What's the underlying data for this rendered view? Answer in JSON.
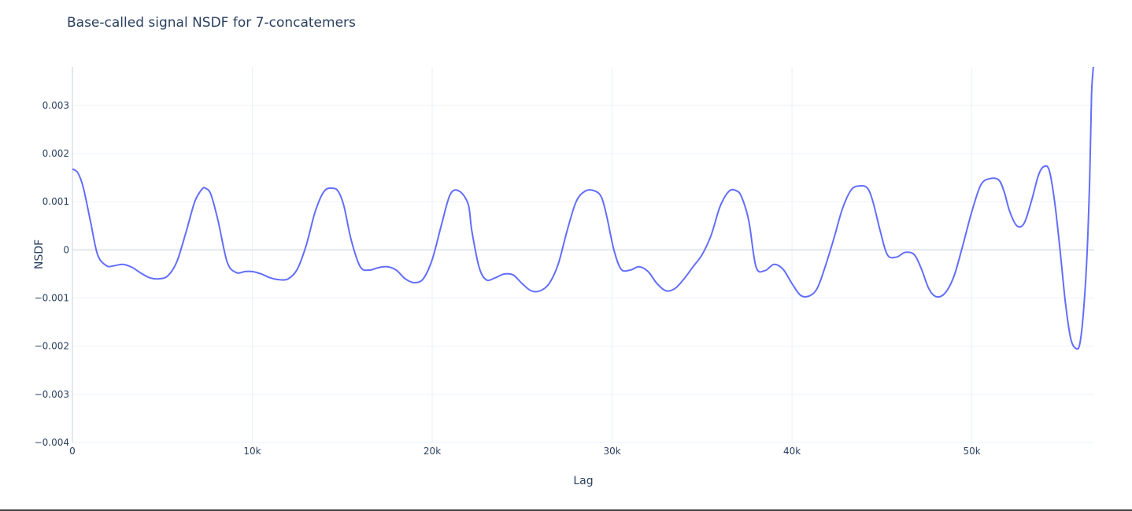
{
  "chart_data": {
    "type": "line",
    "title": "Base-called signal NSDF for 7-concatemers",
    "xlabel": "Lag",
    "ylabel": "NSDF",
    "xlim": [
      0,
      56800
    ],
    "ylim": [
      -0.004,
      0.0038
    ],
    "grid": true,
    "legend": "none",
    "line_color": "#636efa",
    "x_ticks": [
      {
        "value": 0,
        "label": "0"
      },
      {
        "value": 10000,
        "label": "10k"
      },
      {
        "value": 20000,
        "label": "20k"
      },
      {
        "value": 30000,
        "label": "30k"
      },
      {
        "value": 40000,
        "label": "40k"
      },
      {
        "value": 50000,
        "label": "50k"
      }
    ],
    "y_ticks": [
      {
        "value": 0.003,
        "label": "0.003"
      },
      {
        "value": 0.002,
        "label": "0.002"
      },
      {
        "value": 0.001,
        "label": "0.001"
      },
      {
        "value": 0,
        "label": "0"
      },
      {
        "value": -0.001,
        "label": "−0.001"
      },
      {
        "value": -0.002,
        "label": "−0.002"
      },
      {
        "value": -0.003,
        "label": "−0.003"
      },
      {
        "value": -0.004,
        "label": "−0.004"
      }
    ],
    "series": [
      {
        "x": [
          0,
          300,
          600,
          1000,
          1400,
          1900,
          2300,
          2800,
          3300,
          3800,
          4300,
          4800,
          5300,
          5800,
          6300,
          6800,
          7200,
          7400,
          7700,
          8100,
          8600,
          9100,
          9600,
          10000,
          10500,
          11000,
          11500,
          12000,
          12500,
          13000,
          13500,
          14000,
          14500,
          14800,
          15100,
          15500,
          16000,
          16500,
          17000,
          17500,
          18000,
          18500,
          19000,
          19500,
          20000,
          20500,
          21000,
          21500,
          22000,
          22200,
          22600,
          23000,
          23500,
          24000,
          24500,
          25000,
          25500,
          26000,
          26500,
          27000,
          27500,
          28000,
          28500,
          29000,
          29400,
          29700,
          30100,
          30500,
          31000,
          31500,
          32000,
          32500,
          33000,
          33500,
          34000,
          34500,
          35000,
          35500,
          36000,
          36500,
          36900,
          37200,
          37600,
          38000,
          38500,
          39000,
          39500,
          40000,
          40500,
          41000,
          41400,
          41800,
          42300,
          42800,
          43300,
          43800,
          44200,
          44500,
          44900,
          45300,
          45800,
          46300,
          46800,
          47200,
          47600,
          48000,
          48500,
          49000,
          49500,
          50000,
          50500,
          51000,
          51500,
          51800,
          52100,
          52500,
          52900,
          53300,
          53700,
          54000,
          54300,
          54600,
          54900,
          55200,
          55500,
          55800,
          56000,
          56200,
          56400,
          56550,
          56650,
          56750
        ],
        "y": [
          0.00168,
          0.0016,
          0.0013,
          0.0006,
          -0.0001,
          -0.00033,
          -0.00033,
          -0.0003,
          -0.00036,
          -0.00048,
          -0.00058,
          -0.0006,
          -0.00054,
          -0.00025,
          0.00035,
          0.001,
          0.00126,
          0.00128,
          0.00115,
          0.0006,
          -0.00025,
          -0.00047,
          -0.00045,
          -0.00045,
          -0.0005,
          -0.00058,
          -0.00062,
          -0.0006,
          -0.0004,
          0.0001,
          0.0008,
          0.00122,
          0.00128,
          0.0012,
          0.0009,
          0.0002,
          -0.00035,
          -0.00042,
          -0.00037,
          -0.00035,
          -0.00042,
          -0.0006,
          -0.00068,
          -0.0006,
          -0.0002,
          0.0005,
          0.00115,
          0.00122,
          0.00095,
          0.0004,
          -0.00035,
          -0.00062,
          -0.00058,
          -0.0005,
          -0.00052,
          -0.0007,
          -0.00085,
          -0.00085,
          -0.0007,
          -0.0003,
          0.0004,
          0.001,
          0.00122,
          0.00123,
          0.0011,
          0.0007,
          0.0,
          -0.0004,
          -0.00042,
          -0.00035,
          -0.00045,
          -0.0007,
          -0.00085,
          -0.0008,
          -0.0006,
          -0.00035,
          -0.0001,
          0.0003,
          0.0009,
          0.00122,
          0.00123,
          0.0011,
          0.0006,
          -0.00035,
          -0.00043,
          -0.0003,
          -0.0004,
          -0.0007,
          -0.00095,
          -0.00095,
          -0.0008,
          -0.0004,
          0.0002,
          0.00085,
          0.00125,
          0.00133,
          0.00128,
          0.001,
          0.0004,
          -0.0001,
          -0.00015,
          -5e-05,
          -0.0001,
          -0.0004,
          -0.0008,
          -0.00097,
          -0.0009,
          -0.00055,
          0.0001,
          0.0008,
          0.00135,
          0.00148,
          0.00145,
          0.0012,
          0.0008,
          0.0005,
          0.00055,
          0.001,
          0.00155,
          0.00173,
          0.00165,
          0.001,
          0.0,
          -0.0011,
          -0.00185,
          -0.00205,
          -0.00195,
          -0.0013,
          -0.0001,
          0.0015,
          0.0032,
          0.0039
        ]
      }
    ]
  }
}
